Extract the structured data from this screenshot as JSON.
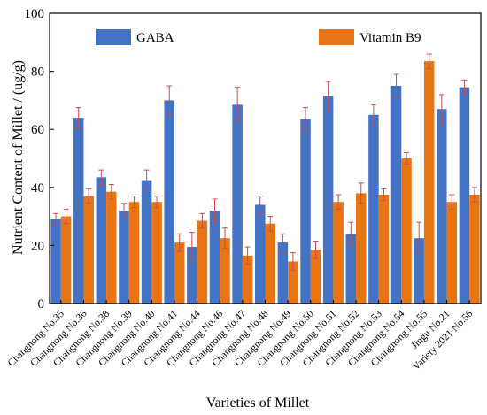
{
  "chart_data": {
    "type": "bar",
    "xlabel": "Varieties of Millet",
    "ylabel": "Nutrient Content of Millet / (ug/g)",
    "ylim": [
      0,
      100
    ],
    "yticks": [
      "0",
      "20",
      "40",
      "60",
      "80",
      "100"
    ],
    "legend_position": "top",
    "categories": [
      "Changnong No.35",
      "Changnong No.36",
      "Changnong No.38",
      "Changnong No.39",
      "Changnong No.40",
      "Changnong No.41",
      "Changnong No.44",
      "Changnong No.46",
      "Changnong No.47",
      "Changnong No.48",
      "Changnong No.49",
      "Changnong No.50",
      "Changnong No.51",
      "Changnong No.52",
      "Changnong No.53",
      "Changnong No.54",
      "Changnong No.55",
      "Jingu No.21",
      "Variety 2021 No.56"
    ],
    "series": [
      {
        "name": "GABA",
        "color": "#4472c4",
        "values": [
          29,
          64,
          43.5,
          32,
          42.5,
          70,
          19.5,
          32,
          68.5,
          34,
          21,
          63.5,
          71.5,
          24,
          65,
          75,
          22.5,
          67,
          74.5
        ],
        "errors": [
          2,
          3.5,
          2.5,
          2.5,
          3.5,
          5,
          5,
          4,
          6,
          3,
          3,
          4,
          5,
          4,
          3.5,
          4,
          5.5,
          5,
          2.5
        ]
      },
      {
        "name": "Vitamin B9",
        "color": "#e87511",
        "values": [
          30,
          37,
          38.5,
          35,
          35,
          21,
          28.5,
          22.5,
          16.5,
          27.5,
          14.5,
          18.5,
          35,
          38,
          37.5,
          50,
          83.5,
          35,
          37.5
        ],
        "errors": [
          2.5,
          2.5,
          2.5,
          2,
          2,
          3,
          2.5,
          3.5,
          3,
          2.5,
          3,
          3,
          2.5,
          3.5,
          2,
          2,
          2.5,
          2.5,
          2.5
        ]
      }
    ]
  }
}
